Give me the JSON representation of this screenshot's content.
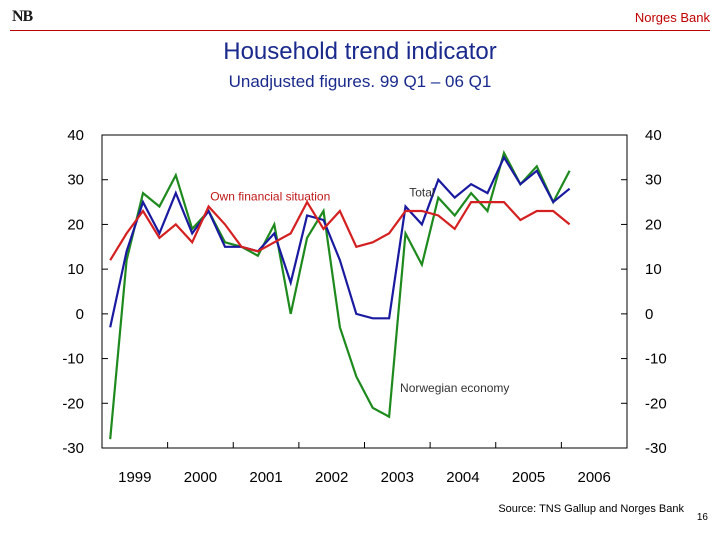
{
  "header": {
    "logo_text": "NB",
    "brand": "Norges Bank"
  },
  "title": "Household trend indicator",
  "subtitle": "Unadjusted figures. 99 Q1 – 06 Q1",
  "source": "Source: TNS Gallup and Norges Bank",
  "page_number": "16",
  "chart_data": {
    "type": "line",
    "title": "Household trend indicator",
    "subtitle": "Unadjusted figures. 99 Q1 – 06 Q1",
    "x_tick_labels": [
      "1999",
      "2000",
      "2001",
      "2002",
      "2003",
      "2004",
      "2005",
      "2006"
    ],
    "x_range": [
      "1999 Q1",
      "2006 Q1"
    ],
    "y_ticks": [
      40,
      30,
      20,
      10,
      0,
      -10,
      -20,
      -30
    ],
    "y_tick_labels": [
      "40",
      "30",
      "20",
      "10",
      "0",
      "-10",
      "-20",
      "-30"
    ],
    "ylim": [
      -30,
      40
    ],
    "secondary_y_axis_same_scale": true,
    "grid": false,
    "series": [
      {
        "name": "Total",
        "color": "#1a1aa0",
        "label_near": "2003 Q4",
        "values": [
          {
            "x": "1999 Q1",
            "y": -3
          },
          {
            "x": "1999 Q2",
            "y": 14
          },
          {
            "x": "1999 Q3",
            "y": 25
          },
          {
            "x": "1999 Q4",
            "y": 18
          },
          {
            "x": "2000 Q1",
            "y": 27
          },
          {
            "x": "2000 Q2",
            "y": 18
          },
          {
            "x": "2000 Q3",
            "y": 23
          },
          {
            "x": "2000 Q4",
            "y": 15
          },
          {
            "x": "2001 Q1",
            "y": 15
          },
          {
            "x": "2001 Q2",
            "y": 14
          },
          {
            "x": "2001 Q3",
            "y": 18
          },
          {
            "x": "2001 Q4",
            "y": 7
          },
          {
            "x": "2002 Q1",
            "y": 22
          },
          {
            "x": "2002 Q2",
            "y": 21
          },
          {
            "x": "2002 Q3",
            "y": 12
          },
          {
            "x": "2002 Q4",
            "y": 0
          },
          {
            "x": "2003 Q1",
            "y": -1
          },
          {
            "x": "2003 Q2",
            "y": -1
          },
          {
            "x": "2003 Q3",
            "y": 24
          },
          {
            "x": "2003 Q4",
            "y": 20
          },
          {
            "x": "2004 Q1",
            "y": 30
          },
          {
            "x": "2004 Q2",
            "y": 26
          },
          {
            "x": "2004 Q3",
            "y": 29
          },
          {
            "x": "2004 Q4",
            "y": 27
          },
          {
            "x": "2005 Q1",
            "y": 35
          },
          {
            "x": "2005 Q2",
            "y": 29
          },
          {
            "x": "2005 Q3",
            "y": 32
          },
          {
            "x": "2005 Q4",
            "y": 25
          },
          {
            "x": "2006 Q1",
            "y": 28
          }
        ]
      },
      {
        "name": "Own financial situation",
        "color": "#d42020",
        "label_near": "2001 Q3",
        "values": [
          {
            "x": "1999 Q1",
            "y": 12
          },
          {
            "x": "1999 Q2",
            "y": 18
          },
          {
            "x": "1999 Q3",
            "y": 23
          },
          {
            "x": "1999 Q4",
            "y": 17
          },
          {
            "x": "2000 Q1",
            "y": 20
          },
          {
            "x": "2000 Q2",
            "y": 16
          },
          {
            "x": "2000 Q3",
            "y": 24
          },
          {
            "x": "2000 Q4",
            "y": 20
          },
          {
            "x": "2001 Q1",
            "y": 15
          },
          {
            "x": "2001 Q2",
            "y": 14
          },
          {
            "x": "2001 Q3",
            "y": 16
          },
          {
            "x": "2001 Q4",
            "y": 18
          },
          {
            "x": "2002 Q1",
            "y": 25
          },
          {
            "x": "2002 Q2",
            "y": 19
          },
          {
            "x": "2002 Q3",
            "y": 23
          },
          {
            "x": "2002 Q4",
            "y": 15
          },
          {
            "x": "2003 Q1",
            "y": 16
          },
          {
            "x": "2003 Q2",
            "y": 18
          },
          {
            "x": "2003 Q3",
            "y": 23
          },
          {
            "x": "2003 Q4",
            "y": 23
          },
          {
            "x": "2004 Q1",
            "y": 22
          },
          {
            "x": "2004 Q2",
            "y": 19
          },
          {
            "x": "2004 Q3",
            "y": 25
          },
          {
            "x": "2004 Q4",
            "y": 25
          },
          {
            "x": "2005 Q1",
            "y": 25
          },
          {
            "x": "2005 Q2",
            "y": 21
          },
          {
            "x": "2005 Q3",
            "y": 23
          },
          {
            "x": "2005 Q4",
            "y": 23
          },
          {
            "x": "2006 Q1",
            "y": 20
          }
        ]
      },
      {
        "name": "Norwegian economy",
        "color": "#1e8a1e",
        "label_near": "2004 Q2",
        "values": [
          {
            "x": "1999 Q1",
            "y": -28
          },
          {
            "x": "1999 Q2",
            "y": 12
          },
          {
            "x": "1999 Q3",
            "y": 27
          },
          {
            "x": "1999 Q4",
            "y": 24
          },
          {
            "x": "2000 Q1",
            "y": 31
          },
          {
            "x": "2000 Q2",
            "y": 19
          },
          {
            "x": "2000 Q3",
            "y": 23
          },
          {
            "x": "2000 Q4",
            "y": 16
          },
          {
            "x": "2001 Q1",
            "y": 15
          },
          {
            "x": "2001 Q2",
            "y": 13
          },
          {
            "x": "2001 Q3",
            "y": 20
          },
          {
            "x": "2001 Q4",
            "y": 0
          },
          {
            "x": "2002 Q1",
            "y": 17
          },
          {
            "x": "2002 Q2",
            "y": 23
          },
          {
            "x": "2002 Q3",
            "y": -3
          },
          {
            "x": "2002 Q4",
            "y": -14
          },
          {
            "x": "2003 Q1",
            "y": -21
          },
          {
            "x": "2003 Q2",
            "y": -23
          },
          {
            "x": "2003 Q3",
            "y": 18
          },
          {
            "x": "2003 Q4",
            "y": 11
          },
          {
            "x": "2004 Q1",
            "y": 26
          },
          {
            "x": "2004 Q2",
            "y": 22
          },
          {
            "x": "2004 Q3",
            "y": 27
          },
          {
            "x": "2004 Q4",
            "y": 23
          },
          {
            "x": "2005 Q1",
            "y": 36
          },
          {
            "x": "2005 Q2",
            "y": 29
          },
          {
            "x": "2005 Q3",
            "y": 33
          },
          {
            "x": "2005 Q4",
            "y": 25
          },
          {
            "x": "2006 Q1",
            "y": 32
          }
        ]
      }
    ]
  }
}
